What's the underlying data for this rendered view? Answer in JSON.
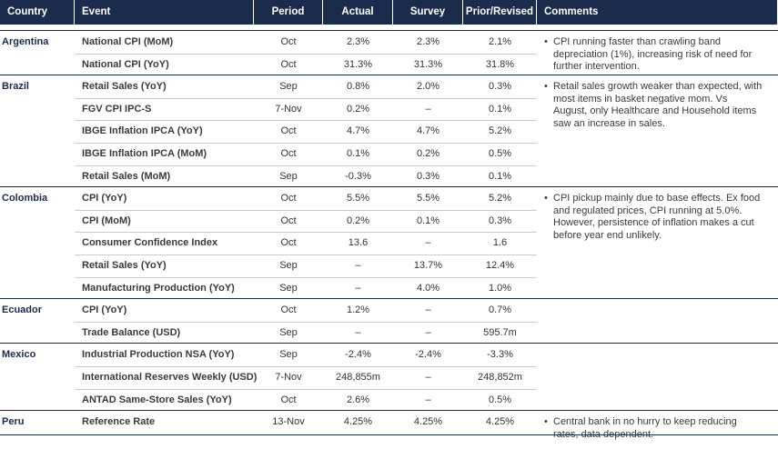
{
  "header": {
    "columns": [
      "Country",
      "Event",
      "Period",
      "Actual",
      "Survey",
      "Prior/Revised",
      "Comments"
    ]
  },
  "groups": [
    {
      "country": "Argentina",
      "comments": [
        "CPI running faster than crawling band depreciation (1%), increasing risk of need for further intervention."
      ],
      "rows": [
        [
          "National CPI (MoM)",
          "Oct",
          "2.3%",
          "2.3%",
          "2.1%"
        ],
        [
          "National CPI (YoY)",
          "Oct",
          "31.3%",
          "31.3%",
          "31.8%"
        ]
      ]
    },
    {
      "country": "Brazil",
      "comments": [
        "Retail sales growth weaker than expected, with most items in basket negative mom. Vs August, only Healthcare and Household items saw an increase in sales."
      ],
      "rows": [
        [
          "Retail Sales (YoY)",
          "Sep",
          "0.8%",
          "2.0%",
          "0.3%"
        ],
        [
          "FGV CPI IPC-S",
          "7-Nov",
          "0.2%",
          "–",
          "0.1%"
        ],
        [
          "IBGE Inflation IPCA (YoY)",
          "Oct",
          "4.7%",
          "4.7%",
          "5.2%"
        ],
        [
          "IBGE Inflation IPCA (MoM)",
          "Oct",
          "0.1%",
          "0.2%",
          "0.5%"
        ],
        [
          "Retail Sales (MoM)",
          "Sep",
          "-0.3%",
          "0.3%",
          "0.1%"
        ]
      ]
    },
    {
      "country": "Colombia",
      "comments": [
        "CPI pickup mainly due to base effects. Ex food and regulated prices, CPI running at 5.0%. However, persistence of inflation makes a cut before year end unlikely."
      ],
      "rows": [
        [
          "CPI (YoY)",
          "Oct",
          "5.5%",
          "5.5%",
          "5.2%"
        ],
        [
          "CPI (MoM)",
          "Oct",
          "0.2%",
          "0.1%",
          "0.3%"
        ],
        [
          "Consumer Confidence Index",
          "Oct",
          "13.6",
          "–",
          "1.6"
        ],
        [
          "Retail Sales (YoY)",
          "Sep",
          "–",
          "13.7%",
          "12.4%"
        ],
        [
          "Manufacturing Production (YoY)",
          "Sep",
          "–",
          "4.0%",
          "1.0%"
        ]
      ]
    },
    {
      "country": "Ecuador",
      "comments": [],
      "rows": [
        [
          "CPI (YoY)",
          "Oct",
          "1.2%",
          "–",
          "0.7%"
        ],
        [
          "Trade Balance (USD)",
          "Sep",
          "–",
          "–",
          "595.7m"
        ]
      ]
    },
    {
      "country": "Mexico",
      "comments": [],
      "rows": [
        [
          "Industrial Production NSA (YoY)",
          "Sep",
          "-2.4%",
          "-2.4%",
          "-3.3%"
        ],
        [
          "International Reserves Weekly (USD)",
          "7-Nov",
          "248,855m",
          "–",
          "248,852m"
        ],
        [
          "ANTAD Same-Store Sales (YoY)",
          "Oct",
          "2.6%",
          "–",
          "0.5%"
        ]
      ]
    },
    {
      "country": "Peru",
      "comments": [
        "Central bank in no hurry to keep reducing rates, data dependent."
      ],
      "rows": [
        [
          "Reference Rate",
          "13-Nov",
          "4.25%",
          "4.25%",
          "4.25%"
        ]
      ]
    }
  ]
}
